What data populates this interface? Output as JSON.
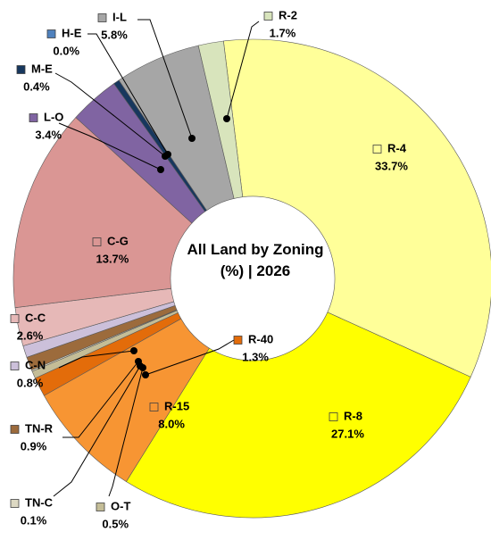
{
  "chart_data": {
    "type": "donut",
    "title": "All Land by Zoning (%) | 2026",
    "categories": [
      "R-4",
      "R-8",
      "R-15",
      "R-40",
      "O-T",
      "TN-C",
      "TN-R",
      "C-N",
      "C-C",
      "C-G",
      "L-O",
      "M-E",
      "H-E",
      "I-L",
      "R-2"
    ],
    "values": [
      33.7,
      27.1,
      8.0,
      1.3,
      0.5,
      0.1,
      0.9,
      0.8,
      2.6,
      13.7,
      3.4,
      0.4,
      0.0,
      5.8,
      1.7
    ],
    "value_labels": [
      "33.7%",
      "27.1%",
      "8.0%",
      "1.3%",
      "0.5%",
      "0.1%",
      "0.9%",
      "0.8%",
      "2.6%",
      "13.7%",
      "3.4%",
      "0.4%",
      "0.0%",
      "5.8%",
      "1.7%"
    ],
    "colors": [
      "#ffff99",
      "#ffff00",
      "#f79533",
      "#e36c0a",
      "#c4bd97",
      "#ddd9c3",
      "#9c6b3c",
      "#ccc0da",
      "#e6b8b7",
      "#da9694",
      "#8064a2",
      "#17375e",
      "#4f81bd",
      "#a6a6a6",
      "#d8e4bc"
    ]
  }
}
